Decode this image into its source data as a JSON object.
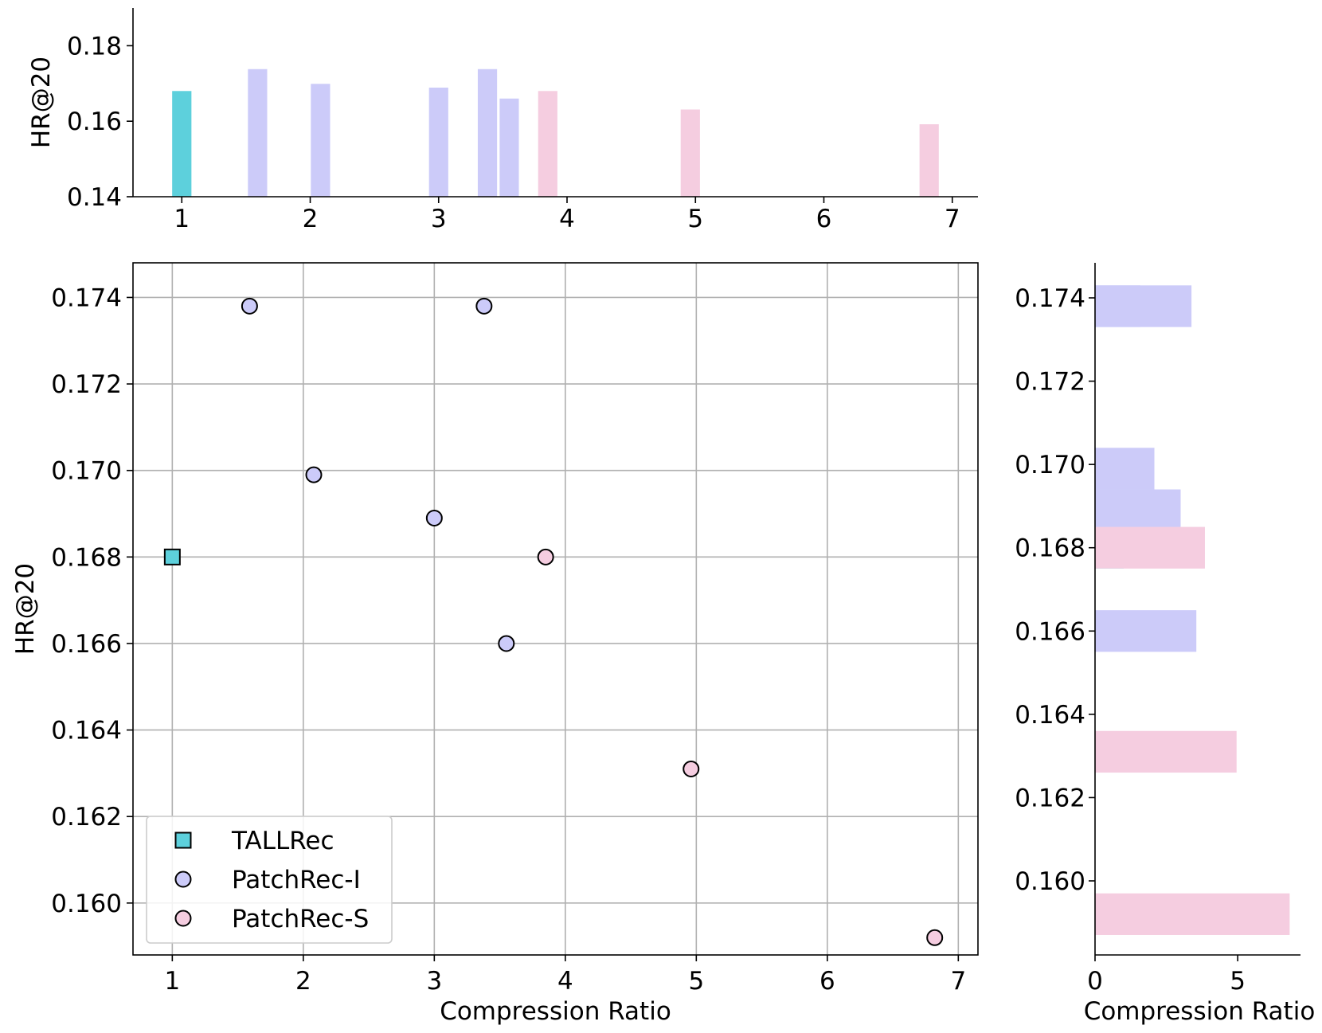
{
  "chart_data": {
    "type": "scatter",
    "xlabel": "Compression Ratio",
    "ylabel": "HR@20",
    "xlim": [
      0.7,
      7.15
    ],
    "ylim": [
      0.1588,
      0.1748
    ],
    "xticks": [
      "1",
      "2",
      "3",
      "4",
      "5",
      "6",
      "7"
    ],
    "yticks": [
      "0.160",
      "0.162",
      "0.164",
      "0.166",
      "0.168",
      "0.170",
      "0.172",
      "0.174"
    ],
    "grid": true,
    "legend_position": "lower-left",
    "series": [
      {
        "name": "TALLRec",
        "marker": "square",
        "color": "#5dd0dc",
        "points": [
          {
            "x": 1.0,
            "y": 0.168
          }
        ]
      },
      {
        "name": "PatchRec-I",
        "marker": "circle",
        "color": "#cccbf9",
        "points": [
          {
            "x": 1.59,
            "y": 0.1738
          },
          {
            "x": 2.08,
            "y": 0.1699
          },
          {
            "x": 3.0,
            "y": 0.1689
          },
          {
            "x": 3.38,
            "y": 0.1738
          },
          {
            "x": 3.55,
            "y": 0.166
          }
        ]
      },
      {
        "name": "PatchRec-S",
        "marker": "circle",
        "color": "#f5cde0",
        "points": [
          {
            "x": 3.85,
            "y": 0.168
          },
          {
            "x": 4.96,
            "y": 0.1631
          },
          {
            "x": 6.82,
            "y": 0.1592
          }
        ]
      }
    ],
    "top_marginal": {
      "type": "bar",
      "ylabel": "HR@20",
      "xlim": [
        0.62,
        7.2
      ],
      "ylim": [
        0.14,
        0.19
      ],
      "xticks": [
        "1",
        "2",
        "3",
        "4",
        "5",
        "6",
        "7"
      ],
      "yticks": [
        "0.14",
        "0.16",
        "0.18"
      ]
    },
    "right_marginal": {
      "type": "bar",
      "orientation": "horizontal",
      "xlabel": "Compression Ratio",
      "xlim": [
        0,
        7.2
      ],
      "xticks": [
        "0",
        "5"
      ],
      "yticks": [
        "0.160",
        "0.162",
        "0.164",
        "0.166",
        "0.168",
        "0.170",
        "0.172",
        "0.174"
      ]
    }
  }
}
